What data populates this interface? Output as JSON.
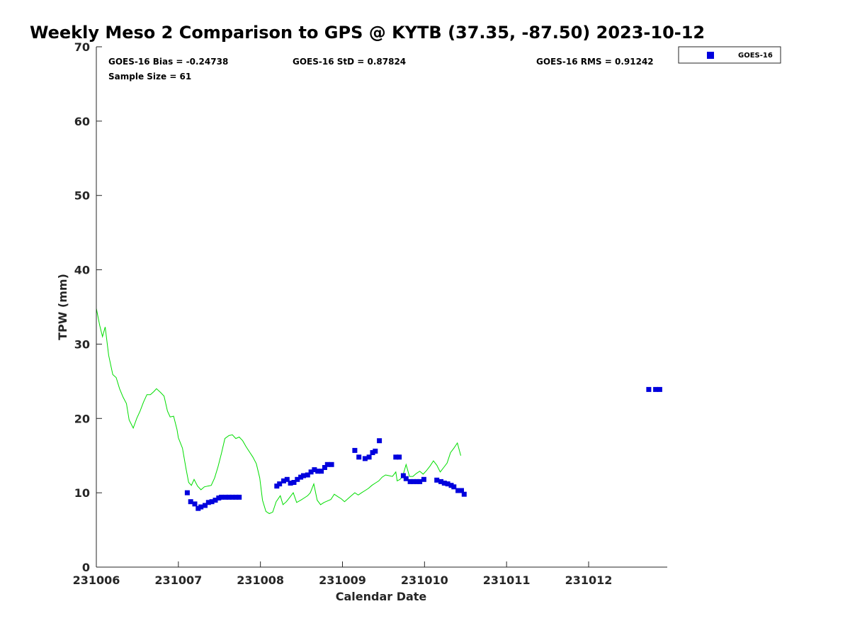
{
  "chart_data": {
    "type": "scatter",
    "title": "Weekly Meso 2 Comparison to GPS @ KYTB (37.35, -87.50) 2023-10-12",
    "xlabel": "Calendar Date",
    "ylabel": "TPW (mm)",
    "xlim": [
      "2023-10-06 00:00",
      "2023-10-12 23:00"
    ],
    "ylim": [
      0,
      70
    ],
    "xticks": [
      "231006",
      "231007",
      "231008",
      "231009",
      "231010",
      "231011",
      "231012"
    ],
    "yticks": [
      "0",
      "10",
      "20",
      "30",
      "40",
      "50",
      "60",
      "70"
    ],
    "grid": false,
    "legend_position": "top-right-outside",
    "stats": {
      "bias": "GOES-16 Bias = -0.24738",
      "std": "GOES-16 StD = 0.87824",
      "rms": "GOES-16 RMS = 0.91242",
      "sample": "Sample Size = 61"
    },
    "series": [
      {
        "name": "GOES-16",
        "kind": "scatter",
        "marker": "square",
        "color": "#0000dd",
        "points": [
          [
            "2023-10-07 02:36",
            10.0
          ],
          [
            "2023-10-07 03:36",
            8.8
          ],
          [
            "2023-10-07 04:48",
            8.5
          ],
          [
            "2023-10-07 05:48",
            7.9
          ],
          [
            "2023-10-07 06:36",
            8.1
          ],
          [
            "2023-10-07 07:48",
            8.3
          ],
          [
            "2023-10-07 08:48",
            8.7
          ],
          [
            "2023-10-07 09:48",
            8.8
          ],
          [
            "2023-10-07 10:48",
            9.0
          ],
          [
            "2023-10-07 11:48",
            9.3
          ],
          [
            "2023-10-07 12:36",
            9.4
          ],
          [
            "2023-10-07 13:48",
            9.4
          ],
          [
            "2023-10-07 14:48",
            9.4
          ],
          [
            "2023-10-07 15:48",
            9.4
          ],
          [
            "2023-10-07 16:48",
            9.4
          ],
          [
            "2023-10-07 17:48",
            9.4
          ],
          [
            "2023-10-08 04:48",
            10.9
          ],
          [
            "2023-10-08 05:36",
            11.2
          ],
          [
            "2023-10-08 06:48",
            11.6
          ],
          [
            "2023-10-08 07:48",
            11.8
          ],
          [
            "2023-10-08 08:48",
            11.3
          ],
          [
            "2023-10-08 09:48",
            11.4
          ],
          [
            "2023-10-08 10:48",
            11.8
          ],
          [
            "2023-10-08 11:48",
            12.1
          ],
          [
            "2023-10-08 12:36",
            12.3
          ],
          [
            "2023-10-08 13:48",
            12.4
          ],
          [
            "2023-10-08 14:48",
            12.8
          ],
          [
            "2023-10-08 15:48",
            13.1
          ],
          [
            "2023-10-08 16:48",
            12.9
          ],
          [
            "2023-10-08 17:48",
            12.9
          ],
          [
            "2023-10-08 18:48",
            13.4
          ],
          [
            "2023-10-08 19:36",
            13.8
          ],
          [
            "2023-10-08 20:48",
            13.8
          ],
          [
            "2023-10-09 03:36",
            15.7
          ],
          [
            "2023-10-09 04:48",
            14.8
          ],
          [
            "2023-10-09 06:36",
            14.6
          ],
          [
            "2023-10-09 07:48",
            14.8
          ],
          [
            "2023-10-09 08:48",
            15.4
          ],
          [
            "2023-10-09 09:36",
            15.6
          ],
          [
            "2023-10-09 10:48",
            17.0
          ],
          [
            "2023-10-09 15:36",
            14.8
          ],
          [
            "2023-10-09 16:36",
            14.8
          ],
          [
            "2023-10-09 17:48",
            12.3
          ],
          [
            "2023-10-09 18:36",
            11.9
          ],
          [
            "2023-10-09 19:48",
            11.5
          ],
          [
            "2023-10-09 20:48",
            11.5
          ],
          [
            "2023-10-09 21:48",
            11.5
          ],
          [
            "2023-10-09 22:36",
            11.5
          ],
          [
            "2023-10-09 23:48",
            11.8
          ],
          [
            "2023-10-10 03:36",
            11.7
          ],
          [
            "2023-10-10 04:48",
            11.5
          ],
          [
            "2023-10-10 05:48",
            11.3
          ],
          [
            "2023-10-10 06:48",
            11.2
          ],
          [
            "2023-10-10 07:48",
            11.0
          ],
          [
            "2023-10-10 08:36",
            10.8
          ],
          [
            "2023-10-10 09:48",
            10.3
          ],
          [
            "2023-10-10 10:48",
            10.3
          ],
          [
            "2023-10-10 11:36",
            9.8
          ],
          [
            "2023-10-12 17:36",
            23.9
          ],
          [
            "2023-10-12 19:36",
            23.9
          ],
          [
            "2023-10-12 20:48",
            23.9
          ]
        ]
      },
      {
        "kind": "line",
        "color": "#00dd00",
        "points": [
          [
            "2023-10-06 00:00",
            34.8
          ],
          [
            "2023-10-06 01:00",
            32.5
          ],
          [
            "2023-10-06 01:48",
            31.0
          ],
          [
            "2023-10-06 02:36",
            32.3
          ],
          [
            "2023-10-06 03:36",
            28.5
          ],
          [
            "2023-10-06 04:48",
            25.9
          ],
          [
            "2023-10-06 05:48",
            25.5
          ],
          [
            "2023-10-06 06:48",
            24.0
          ],
          [
            "2023-10-06 07:48",
            22.9
          ],
          [
            "2023-10-06 08:48",
            22.0
          ],
          [
            "2023-10-06 09:36",
            19.8
          ],
          [
            "2023-10-06 10:48",
            18.7
          ],
          [
            "2023-10-06 11:48",
            20.0
          ],
          [
            "2023-10-06 12:48",
            21.0
          ],
          [
            "2023-10-06 13:48",
            22.2
          ],
          [
            "2023-10-06 14:48",
            23.2
          ],
          [
            "2023-10-06 15:48",
            23.2
          ],
          [
            "2023-10-06 16:48",
            23.6
          ],
          [
            "2023-10-06 17:36",
            24.0
          ],
          [
            "2023-10-06 18:48",
            23.5
          ],
          [
            "2023-10-06 19:48",
            23.0
          ],
          [
            "2023-10-06 20:48",
            21.0
          ],
          [
            "2023-10-06 21:36",
            20.2
          ],
          [
            "2023-10-06 22:36",
            20.3
          ],
          [
            "2023-10-06 23:36",
            18.5
          ],
          [
            "2023-10-07 00:00",
            17.4
          ],
          [
            "2023-10-07 01:12",
            16.0
          ],
          [
            "2023-10-07 02:12",
            13.3
          ],
          [
            "2023-10-07 03:00",
            11.4
          ],
          [
            "2023-10-07 03:48",
            11.0
          ],
          [
            "2023-10-07 04:36",
            11.8
          ],
          [
            "2023-10-07 05:36",
            10.9
          ],
          [
            "2023-10-07 06:36",
            10.4
          ],
          [
            "2023-10-07 07:36",
            10.8
          ],
          [
            "2023-10-07 08:36",
            10.9
          ],
          [
            "2023-10-07 09:36",
            11.0
          ],
          [
            "2023-10-07 10:36",
            12.0
          ],
          [
            "2023-10-07 11:36",
            13.5
          ],
          [
            "2023-10-07 12:36",
            15.3
          ],
          [
            "2023-10-07 13:36",
            17.3
          ],
          [
            "2023-10-07 14:48",
            17.7
          ],
          [
            "2023-10-07 15:48",
            17.8
          ],
          [
            "2023-10-07 16:48",
            17.3
          ],
          [
            "2023-10-07 17:48",
            17.5
          ],
          [
            "2023-10-07 18:48",
            17.0
          ],
          [
            "2023-10-07 19:48",
            16.2
          ],
          [
            "2023-10-07 20:48",
            15.5
          ],
          [
            "2023-10-07 21:48",
            14.8
          ],
          [
            "2023-10-07 22:48",
            13.9
          ],
          [
            "2023-10-07 23:48",
            12.0
          ],
          [
            "2023-10-08 00:36",
            9.0
          ],
          [
            "2023-10-08 01:36",
            7.5
          ],
          [
            "2023-10-08 02:36",
            7.2
          ],
          [
            "2023-10-08 03:36",
            7.4
          ],
          [
            "2023-10-08 04:36",
            8.8
          ],
          [
            "2023-10-08 05:48",
            9.6
          ],
          [
            "2023-10-08 06:36",
            8.4
          ],
          [
            "2023-10-08 07:36",
            8.8
          ],
          [
            "2023-10-08 08:36",
            9.4
          ],
          [
            "2023-10-08 09:36",
            10.0
          ],
          [
            "2023-10-08 10:36",
            8.7
          ],
          [
            "2023-10-08 11:48",
            9.0
          ],
          [
            "2023-10-08 12:48",
            9.3
          ],
          [
            "2023-10-08 13:48",
            9.6
          ],
          [
            "2023-10-08 14:36",
            10.0
          ],
          [
            "2023-10-08 15:36",
            11.2
          ],
          [
            "2023-10-08 16:36",
            9.0
          ],
          [
            "2023-10-08 17:36",
            8.4
          ],
          [
            "2023-10-08 18:36",
            8.7
          ],
          [
            "2023-10-08 19:36",
            8.9
          ],
          [
            "2023-10-08 20:36",
            9.1
          ],
          [
            "2023-10-08 21:36",
            9.8
          ],
          [
            "2023-10-08 22:36",
            9.5
          ],
          [
            "2023-10-08 23:36",
            9.2
          ],
          [
            "2023-10-09 00:36",
            8.8
          ],
          [
            "2023-10-09 01:36",
            9.2
          ],
          [
            "2023-10-09 02:36",
            9.6
          ],
          [
            "2023-10-09 03:36",
            10.0
          ],
          [
            "2023-10-09 04:36",
            9.7
          ],
          [
            "2023-10-09 05:36",
            10.0
          ],
          [
            "2023-10-09 06:36",
            10.3
          ],
          [
            "2023-10-09 07:36",
            10.6
          ],
          [
            "2023-10-09 08:36",
            11.0
          ],
          [
            "2023-10-09 09:36",
            11.3
          ],
          [
            "2023-10-09 10:36",
            11.6
          ],
          [
            "2023-10-09 11:36",
            12.1
          ],
          [
            "2023-10-09 12:36",
            12.4
          ],
          [
            "2023-10-09 13:36",
            12.3
          ],
          [
            "2023-10-09 14:36",
            12.2
          ],
          [
            "2023-10-09 15:36",
            12.8
          ],
          [
            "2023-10-09 16:00",
            11.6
          ],
          [
            "2023-10-09 16:48",
            11.8
          ],
          [
            "2023-10-09 17:36",
            12.2
          ],
          [
            "2023-10-09 18:36",
            13.8
          ],
          [
            "2023-10-09 19:36",
            12.2
          ],
          [
            "2023-10-09 20:36",
            12.2
          ],
          [
            "2023-10-09 21:36",
            12.6
          ],
          [
            "2023-10-09 22:36",
            12.9
          ],
          [
            "2023-10-09 23:36",
            12.5
          ],
          [
            "2023-10-10 00:36",
            13.0
          ],
          [
            "2023-10-10 01:36",
            13.6
          ],
          [
            "2023-10-10 02:36",
            14.3
          ],
          [
            "2023-10-10 03:36",
            13.7
          ],
          [
            "2023-10-10 04:36",
            12.8
          ],
          [
            "2023-10-10 05:36",
            13.4
          ],
          [
            "2023-10-10 06:36",
            14.0
          ],
          [
            "2023-10-10 07:36",
            15.4
          ],
          [
            "2023-10-10 08:36",
            16.0
          ],
          [
            "2023-10-10 09:36",
            16.7
          ],
          [
            "2023-10-10 10:36",
            15.0
          ]
        ]
      }
    ]
  }
}
